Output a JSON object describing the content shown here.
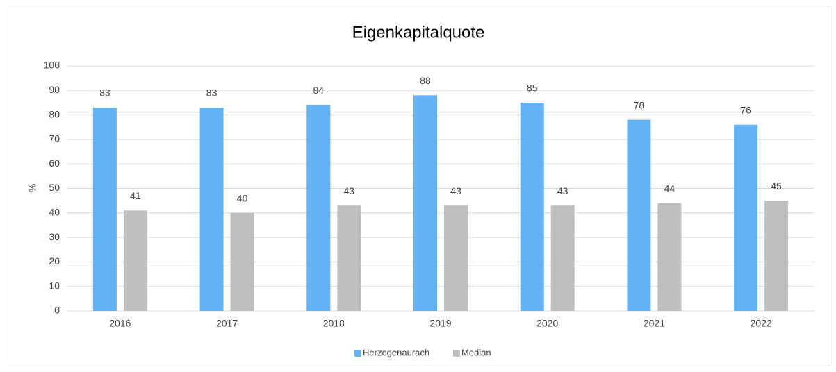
{
  "chart_data": {
    "type": "bar",
    "title": "Eigenkapitalquote",
    "y_label": "%",
    "categories": [
      "2016",
      "2017",
      "2018",
      "2019",
      "2020",
      "2021",
      "2022"
    ],
    "series": [
      {
        "name": "Herzogenaurach",
        "color": "#63b3f4",
        "values": [
          83,
          83,
          84,
          88,
          85,
          78,
          76
        ]
      },
      {
        "name": "Median",
        "color": "#bfbfbf",
        "values": [
          41,
          40,
          43,
          43,
          43,
          44,
          45
        ]
      }
    ],
    "ylim": [
      0,
      100
    ],
    "yticks": [
      0,
      10,
      20,
      30,
      40,
      50,
      60,
      70,
      80,
      90,
      100
    ],
    "grid": true,
    "legend": "bottom"
  }
}
